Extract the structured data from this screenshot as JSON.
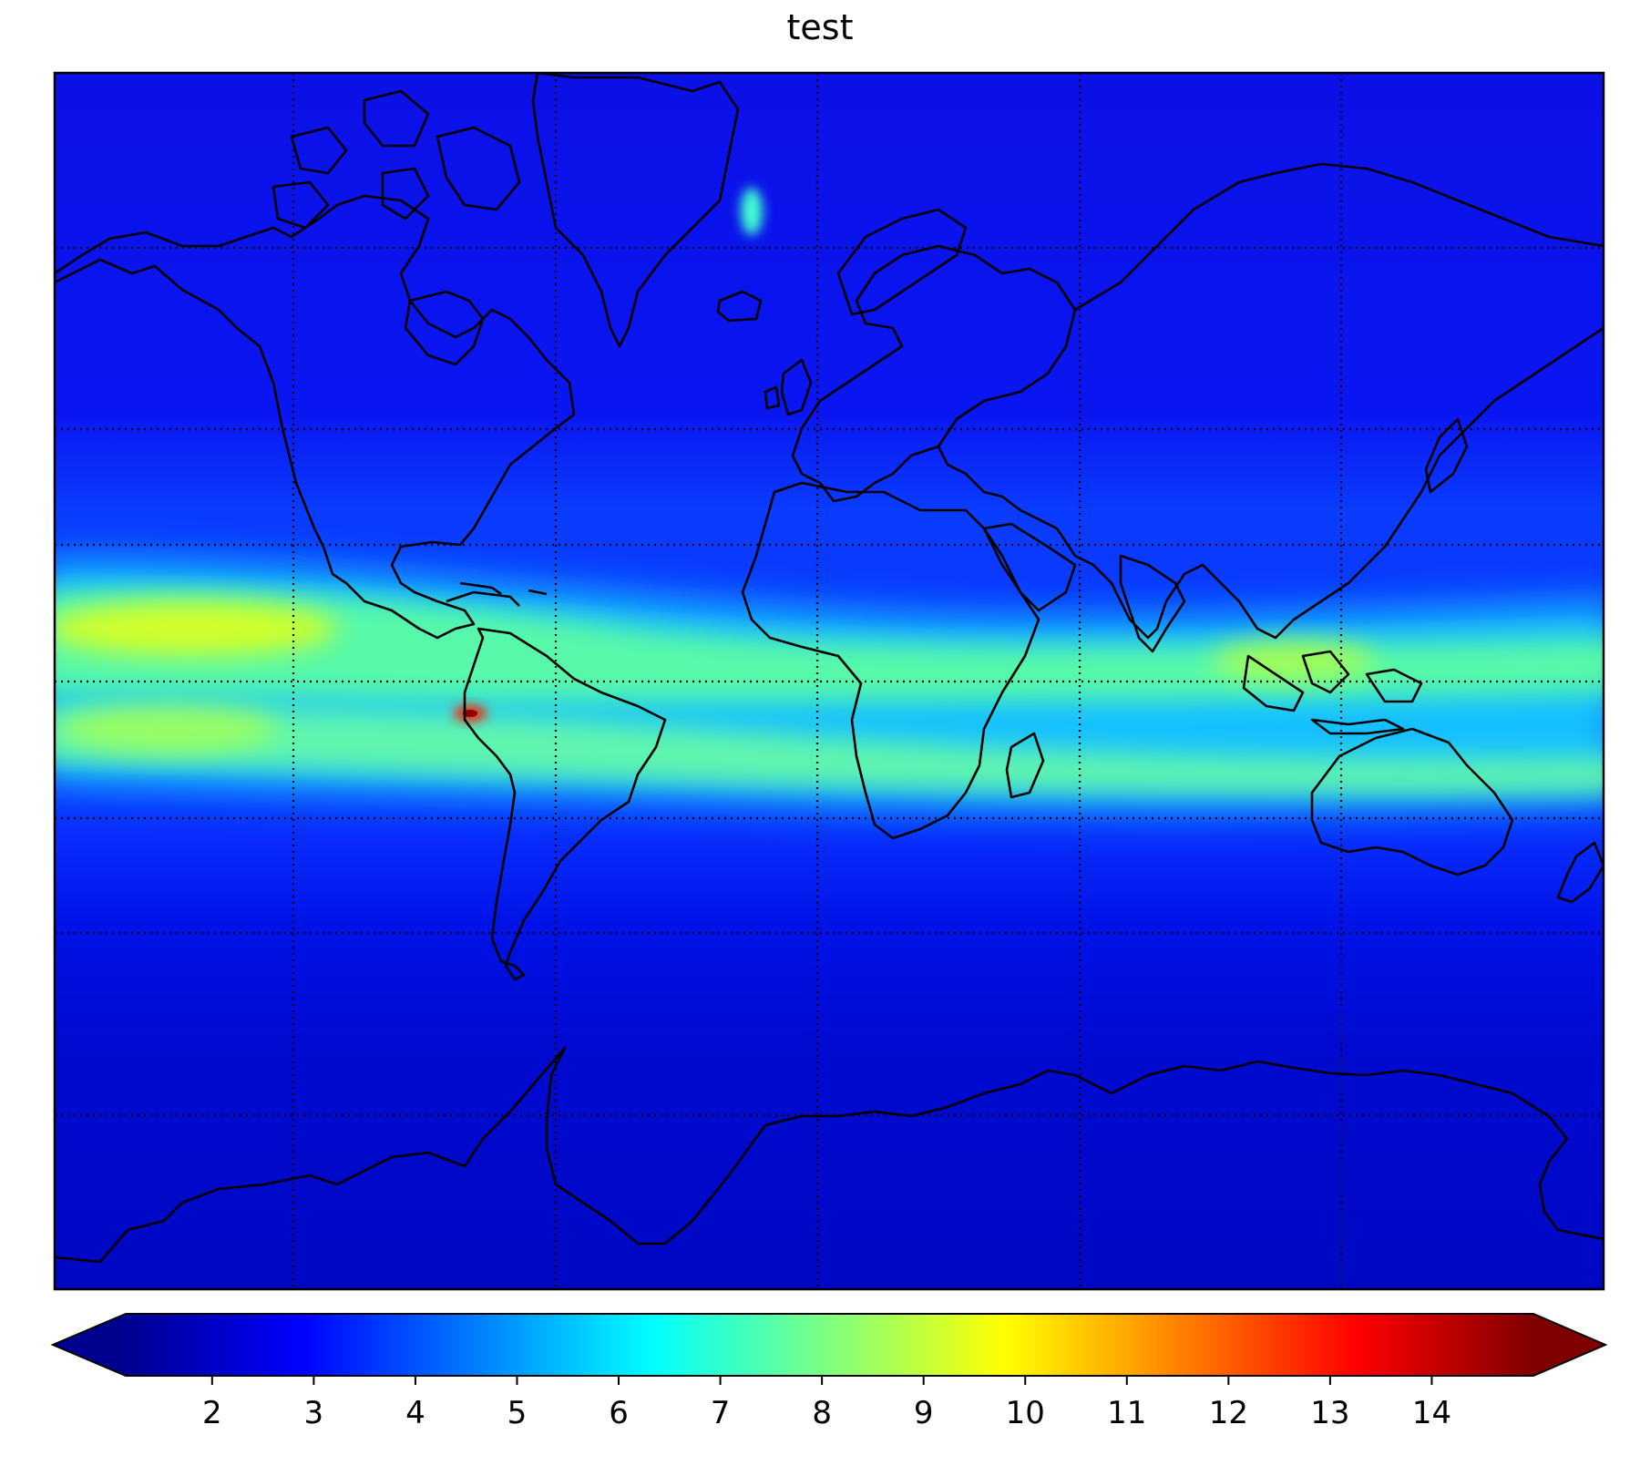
{
  "title": "test",
  "colormap": "jet",
  "map": {
    "projection": "mercator",
    "graticule": "dotted",
    "gridlines": true,
    "coastline_color": "#000000"
  },
  "colorbar": {
    "orientation": "horizontal",
    "extend": "both",
    "vmin": 1.15,
    "vmax": 15.0,
    "ticks": [
      2,
      3,
      4,
      5,
      6,
      7,
      8,
      9,
      10,
      11,
      12,
      13,
      14
    ]
  }
}
